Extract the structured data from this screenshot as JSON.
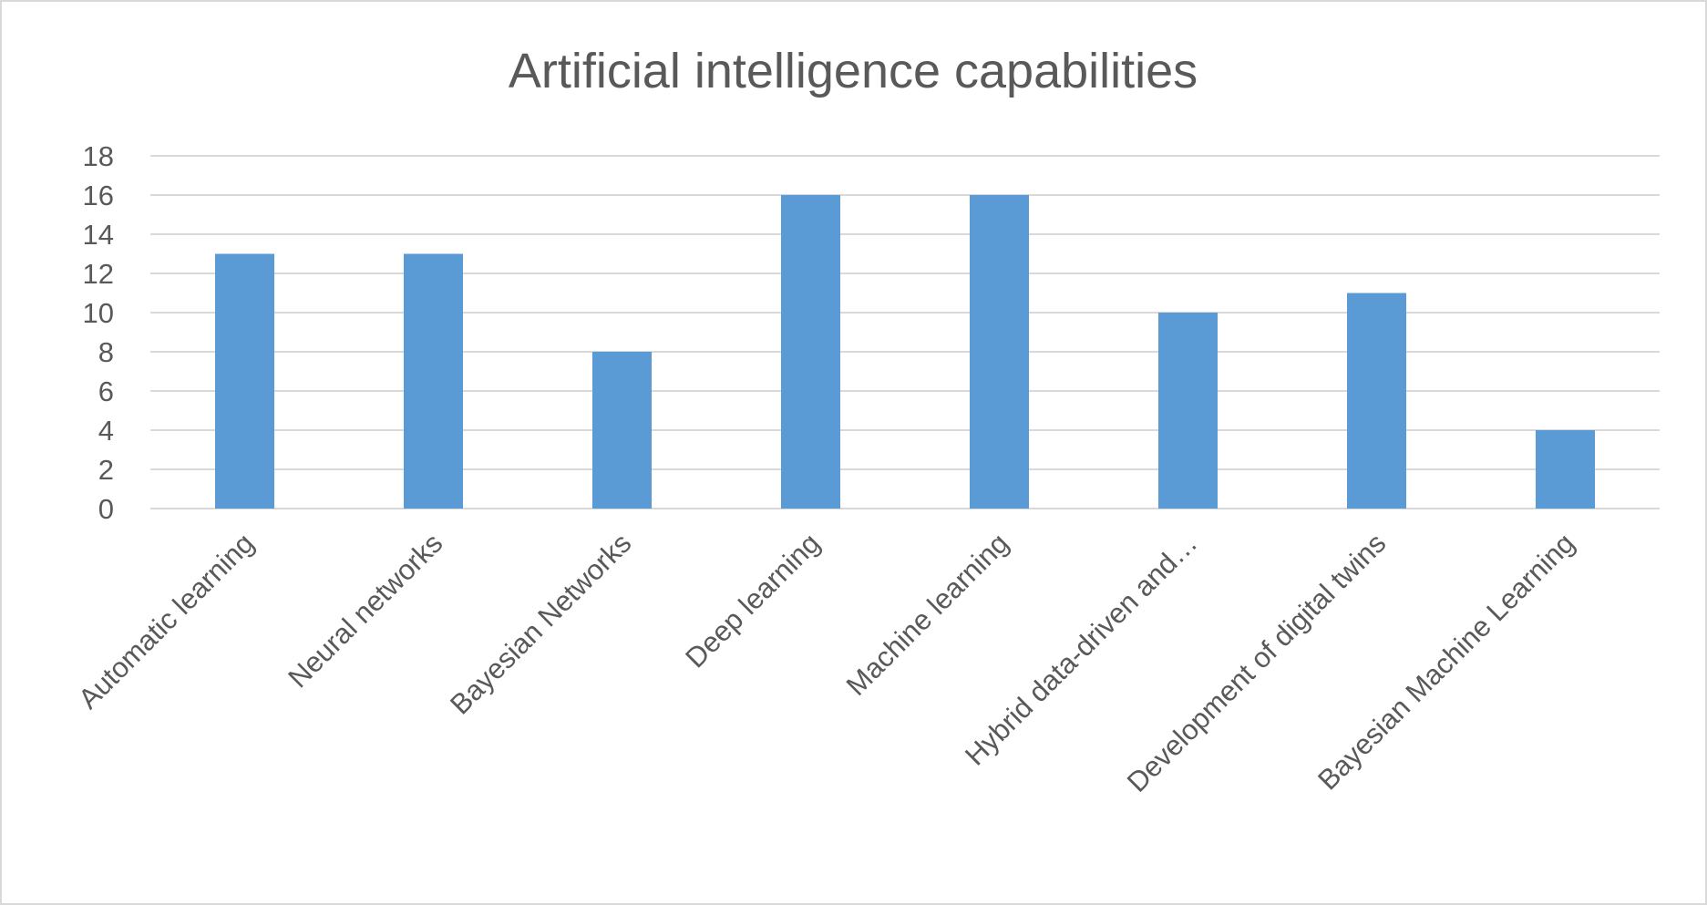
{
  "chart_data": {
    "type": "bar",
    "title": "Artificial intelligence capabilities",
    "categories": [
      "Automatic learning",
      "Neural networks",
      "Bayesian Networks",
      "Deep learning",
      "Machine learning",
      "Hybrid data-driven and…",
      "Development of digital twins",
      "Bayesian Machine Learning"
    ],
    "values": [
      13,
      13,
      8,
      16,
      16,
      10,
      11,
      4
    ],
    "yticks": [
      "0",
      "2",
      "4",
      "6",
      "8",
      "10",
      "12",
      "14",
      "16",
      "18"
    ],
    "ylim": [
      0,
      18
    ],
    "grid": true,
    "legend": "none",
    "bar_color": "#5b9bd5"
  }
}
